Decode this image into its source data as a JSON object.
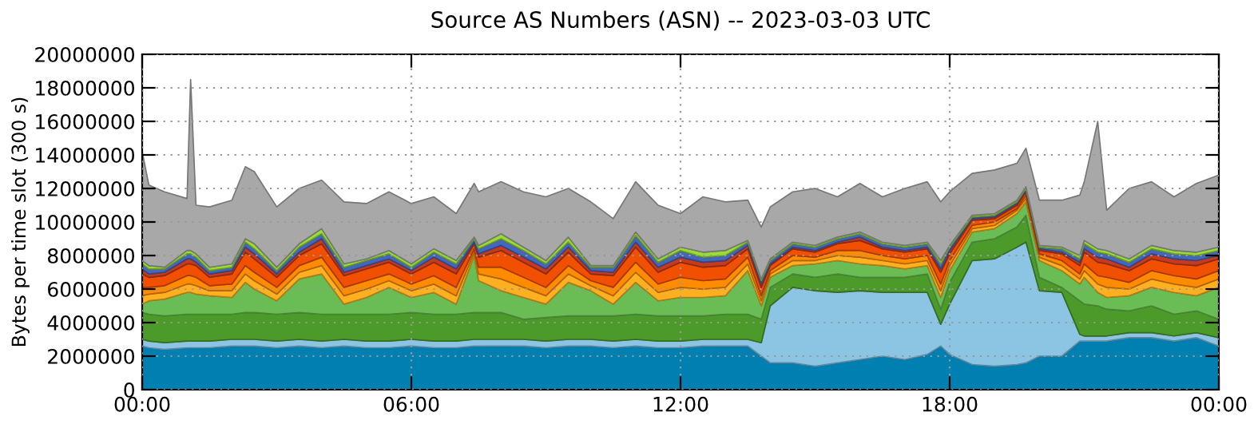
{
  "chart_data": {
    "type": "area",
    "stacked": true,
    "title": "Source AS Numbers (ASN) -- 2023-03-03 UTC",
    "ylabel": "Bytes per time slot (300 s)",
    "x": [
      0,
      0.15,
      0.5,
      1,
      1.08,
      1.2,
      1.5,
      2,
      2.3,
      2.5,
      3,
      3.5,
      4,
      4.5,
      5,
      5.5,
      6,
      6.5,
      7,
      7.4,
      7.5,
      8,
      8.5,
      9,
      9.5,
      10,
      10.5,
      11,
      11.5,
      12,
      12.5,
      13,
      13.5,
      13.8,
      14,
      14.5,
      15,
      15.5,
      16,
      16.5,
      17,
      17.5,
      17.8,
      18,
      18.5,
      19,
      19.5,
      19.7,
      20,
      20.5,
      20.9,
      21,
      21.3,
      21.5,
      22,
      22.5,
      23,
      23.5,
      24
    ],
    "xlim": [
      0,
      24
    ],
    "xticks": [
      {
        "value": 0,
        "label": "00:00"
      },
      {
        "value": 6,
        "label": "06:00"
      },
      {
        "value": 12,
        "label": "12:00"
      },
      {
        "value": 18,
        "label": "18:00"
      },
      {
        "value": 24,
        "label": "00:00"
      }
    ],
    "ylim": [
      0,
      20000000
    ],
    "yticks": [
      0,
      2000000,
      4000000,
      6000000,
      8000000,
      10000000,
      12000000,
      14000000,
      16000000,
      18000000,
      20000000
    ],
    "grid": true,
    "series": [
      {
        "color": "#0080b0",
        "values": [
          2600000.0,
          2500000.0,
          2400000.0,
          2500000.0,
          2500000.0,
          2500000.0,
          2500000.0,
          2600000.0,
          2600000.0,
          2600000.0,
          2500000.0,
          2600000.0,
          2500000.0,
          2600000.0,
          2500000.0,
          2500000.0,
          2600000.0,
          2500000.0,
          2500000.0,
          2600000.0,
          2600000.0,
          2600000.0,
          2600000.0,
          2500000.0,
          2600000.0,
          2600000.0,
          2500000.0,
          2600000.0,
          2500000.0,
          2500000.0,
          2600000.0,
          2600000.0,
          2600000.0,
          2000000.0,
          1600000.0,
          1600000.0,
          1400000.0,
          1600000.0,
          1800000.0,
          2000000.0,
          1800000.0,
          2100000.0,
          2600000.0,
          2100000.0,
          1500000.0,
          1400000.0,
          1500000.0,
          1600000.0,
          2000000.0,
          2000000.0,
          2900000.0,
          2900000.0,
          2900000.0,
          2900000.0,
          3100000.0,
          3100000.0,
          2900000.0,
          3100000.0,
          2600000.0
        ]
      },
      {
        "color": "#8cc4e4",
        "values": [
          400000.0,
          400000.0,
          400000.0,
          400000.0,
          400000.0,
          400000.0,
          400000.0,
          400000.0,
          400000.0,
          400000.0,
          400000.0,
          400000.0,
          400000.0,
          400000.0,
          400000.0,
          400000.0,
          400000.0,
          400000.0,
          400000.0,
          400000.0,
          400000.0,
          400000.0,
          400000.0,
          400000.0,
          400000.0,
          400000.0,
          400000.0,
          400000.0,
          400000.0,
          400000.0,
          400000.0,
          400000.0,
          400000.0,
          800000.0,
          3400000.0,
          4500000.0,
          4500000.0,
          4200000.0,
          4100000.0,
          3800000.0,
          4000000.0,
          3700000.0,
          1300000.0,
          3000000.0,
          6200000.0,
          6400000.0,
          7000000.0,
          7200000.0,
          3900000.0,
          3800000.0,
          400000.0,
          300000.0,
          300000.0,
          300000.0,
          300000.0,
          300000.0,
          300000.0,
          300000.0,
          500000.0
        ]
      },
      {
        "color": "#4c9a2a",
        "values": [
          1600000.0,
          1600000.0,
          1600000.0,
          1600000.0,
          1600000.0,
          1600000.0,
          1600000.0,
          1500000.0,
          1600000.0,
          1600000.0,
          1600000.0,
          1600000.0,
          1600000.0,
          1500000.0,
          1600000.0,
          1600000.0,
          1600000.0,
          1600000.0,
          1600000.0,
          1600000.0,
          1600000.0,
          1600000.0,
          1200000.0,
          1400000.0,
          1400000.0,
          1400000.0,
          1500000.0,
          1500000.0,
          1500000.0,
          1500000.0,
          1400000.0,
          1500000.0,
          1500000.0,
          1400000.0,
          1100000.0,
          800000.0,
          800000.0,
          1100000.0,
          800000.0,
          900000.0,
          900000.0,
          1100000.0,
          900000.0,
          1300000.0,
          1100000.0,
          1200000.0,
          1200000.0,
          1600000.0,
          800000.0,
          300000.0,
          2000000.0,
          1900000.0,
          1800000.0,
          1600000.0,
          1300000.0,
          1600000.0,
          1300000.0,
          1300000.0,
          1100000.0
        ]
      },
      {
        "color": "#6abc54",
        "values": [
          500000.0,
          800000.0,
          1000000.0,
          1300000.0,
          1300000.0,
          1200000.0,
          1100000.0,
          1000000.0,
          1800000.0,
          1400000.0,
          800000.0,
          2000000.0,
          2400000.0,
          600000.0,
          1000000.0,
          1600000.0,
          900000.0,
          1300000.0,
          600000.0,
          3400000.0,
          1900000.0,
          1300000.0,
          1300000.0,
          800000.0,
          2000000.0,
          1500000.0,
          700000.0,
          1900000.0,
          900000.0,
          1100000.0,
          1100000.0,
          1100000.0,
          2600000.0,
          800000.0,
          600000.0,
          500000.0,
          800000.0,
          800000.0,
          800000.0,
          700000.0,
          500000.0,
          500000.0,
          700000.0,
          700000.0,
          600000.0,
          600000.0,
          800000.0,
          800000.0,
          1000000.0,
          1000000.0,
          1000000.0,
          1600000.0,
          800000.0,
          700000.0,
          900000.0,
          1100000.0,
          1300000.0,
          900000.0,
          1900000.0
        ]
      },
      {
        "color": "#ffb020",
        "values": [
          500000.0,
          400000.0,
          400000.0,
          500000.0,
          500000.0,
          500000.0,
          300000.0,
          400000.0,
          500000.0,
          500000.0,
          400000.0,
          400000.0,
          500000.0,
          500000.0,
          500000.0,
          400000.0,
          400000.0,
          500000.0,
          500000.0,
          200000.0,
          400000.0,
          700000.0,
          600000.0,
          500000.0,
          500000.0,
          300000.0,
          500000.0,
          600000.0,
          500000.0,
          600000.0,
          500000.0,
          500000.0,
          400000.0,
          300000.0,
          200000.0,
          300000.0,
          200000.0,
          300000.0,
          400000.0,
          300000.0,
          300000.0,
          300000.0,
          400000.0,
          300000.0,
          200000.0,
          200000.0,
          200000.0,
          200000.0,
          200000.0,
          300000.0,
          300000.0,
          400000.0,
          500000.0,
          600000.0,
          400000.0,
          500000.0,
          500000.0,
          500000.0,
          500000.0
        ]
      },
      {
        "color": "#ff8c00",
        "values": [
          500000.0,
          400000.0,
          400000.0,
          500000.0,
          500000.0,
          500000.0,
          300000.0,
          400000.0,
          500000.0,
          500000.0,
          400000.0,
          400000.0,
          500000.0,
          500000.0,
          500000.0,
          400000.0,
          400000.0,
          500000.0,
          500000.0,
          200000.0,
          400000.0,
          700000.0,
          600000.0,
          500000.0,
          500000.0,
          300000.0,
          500000.0,
          600000.0,
          500000.0,
          600000.0,
          500000.0,
          500000.0,
          400000.0,
          300000.0,
          200000.0,
          300000.0,
          200000.0,
          300000.0,
          400000.0,
          300000.0,
          300000.0,
          300000.0,
          400000.0,
          300000.0,
          200000.0,
          200000.0,
          100000.0,
          200000.0,
          200000.0,
          300000.0,
          300000.0,
          400000.0,
          500000.0,
          600000.0,
          400000.0,
          500000.0,
          500000.0,
          500000.0,
          500000.0
        ]
      },
      {
        "color": "#f05000",
        "values": [
          800000.0,
          600000.0,
          600000.0,
          700000.0,
          700000.0,
          700000.0,
          500000.0,
          600000.0,
          800000.0,
          800000.0,
          600000.0,
          600000.0,
          800000.0,
          700000.0,
          700000.0,
          700000.0,
          600000.0,
          800000.0,
          800000.0,
          300000.0,
          600000.0,
          1000000.0,
          900000.0,
          800000.0,
          800000.0,
          400000.0,
          700000.0,
          900000.0,
          700000.0,
          900000.0,
          800000.0,
          800000.0,
          500000.0,
          500000.0,
          300000.0,
          400000.0,
          300000.0,
          400000.0,
          600000.0,
          400000.0,
          400000.0,
          400000.0,
          700000.0,
          400000.0,
          300000.0,
          200000.0,
          200000.0,
          200000.0,
          200000.0,
          400000.0,
          500000.0,
          700000.0,
          800000.0,
          800000.0,
          700000.0,
          700000.0,
          700000.0,
          800000.0,
          700000.0
        ]
      },
      {
        "color": "#c83a1e",
        "values": [
          300000.0,
          200000.0,
          200000.0,
          300000.0,
          300000.0,
          200000.0,
          200000.0,
          200000.0,
          300000.0,
          300000.0,
          200000.0,
          200000.0,
          300000.0,
          200000.0,
          200000.0,
          200000.0,
          200000.0,
          300000.0,
          300000.0,
          100000.0,
          200000.0,
          300000.0,
          300000.0,
          300000.0,
          300000.0,
          200000.0,
          200000.0,
          300000.0,
          300000.0,
          300000.0,
          300000.0,
          300000.0,
          200000.0,
          200000.0,
          100000.0,
          100000.0,
          100000.0,
          100000.0,
          200000.0,
          100000.0,
          100000.0,
          100000.0,
          200000.0,
          200000.0,
          100000.0,
          100000.0,
          100000.0,
          100000.0,
          100000.0,
          100000.0,
          200000.0,
          200000.0,
          300000.0,
          300000.0,
          200000.0,
          300000.0,
          300000.0,
          300000.0,
          200000.0
        ]
      },
      {
        "color": "#4466bb",
        "values": [
          300000.0,
          300000.0,
          200000.0,
          300000.0,
          300000.0,
          300000.0,
          200000.0,
          200000.0,
          300000.0,
          300000.0,
          200000.0,
          300000.0,
          300000.0,
          300000.0,
          300000.0,
          300000.0,
          200000.0,
          300000.0,
          300000.0,
          200000.0,
          300000.0,
          400000.0,
          400000.0,
          300000.0,
          300000.0,
          200000.0,
          300000.0,
          400000.0,
          300000.0,
          400000.0,
          300000.0,
          300000.0,
          200000.0,
          200000.0,
          200000.0,
          200000.0,
          200000.0,
          200000.0,
          200000.0,
          200000.0,
          200000.0,
          200000.0,
          300000.0,
          200000.0,
          100000.0,
          100000.0,
          100000.0,
          100000.0,
          100000.0,
          200000.0,
          200000.0,
          300000.0,
          300000.0,
          300000.0,
          300000.0,
          300000.0,
          300000.0,
          300000.0,
          300000.0
        ]
      },
      {
        "color": "#99dd33",
        "values": [
          200000.0,
          200000.0,
          100000.0,
          200000.0,
          200000.0,
          200000.0,
          200000.0,
          200000.0,
          200000.0,
          300000.0,
          200000.0,
          200000.0,
          300000.0,
          200000.0,
          100000.0,
          200000.0,
          200000.0,
          200000.0,
          200000.0,
          100000.0,
          200000.0,
          300000.0,
          200000.0,
          200000.0,
          300000.0,
          100000.0,
          100000.0,
          200000.0,
          200000.0,
          200000.0,
          300000.0,
          300000.0,
          100000.0,
          100000.0,
          100000.0,
          100000.0,
          100000.0,
          100000.0,
          100000.0,
          100000.0,
          100000.0,
          100000.0,
          200000.0,
          100000.0,
          100000.0,
          100000.0,
          100000.0,
          100000.0,
          100000.0,
          100000.0,
          200000.0,
          200000.0,
          200000.0,
          200000.0,
          200000.0,
          200000.0,
          200000.0,
          200000.0,
          200000.0
        ]
      },
      {
        "color": "#a8a8a8",
        "values": [
          6500000.0,
          4800000.0,
          4500000.0,
          3100000.0,
          10200000.0,
          2900000.0,
          3600000.0,
          3800000.0,
          4300000.0,
          4300000.0,
          3600000.0,
          3300000.0,
          2900000.0,
          3700000.0,
          3300000.0,
          3500000.0,
          3600000.0,
          3100000.0,
          2800000.0,
          3200000.0,
          3200000.0,
          3100000.0,
          3300000.0,
          3800000.0,
          2900000.0,
          3800000.0,
          2800000.0,
          3000000.0,
          3200000.0,
          2000000.0,
          3300000.0,
          2900000.0,
          2400000.0,
          3100000.0,
          3100000.0,
          3000000.0,
          3400000.0,
          2400000.0,
          2900000.0,
          2700000.0,
          3400000.0,
          3600000.0,
          3500000.0,
          3200000.0,
          2500000.0,
          2600000.0,
          2200000.0,
          2300000.0,
          2700000.0,
          2800000.0,
          3600000.0,
          3500000.0,
          7600000.0,
          2400000.0,
          4200000.0,
          3800000.0,
          3200000.0,
          4100000.0,
          4300000.0
        ]
      }
    ]
  }
}
